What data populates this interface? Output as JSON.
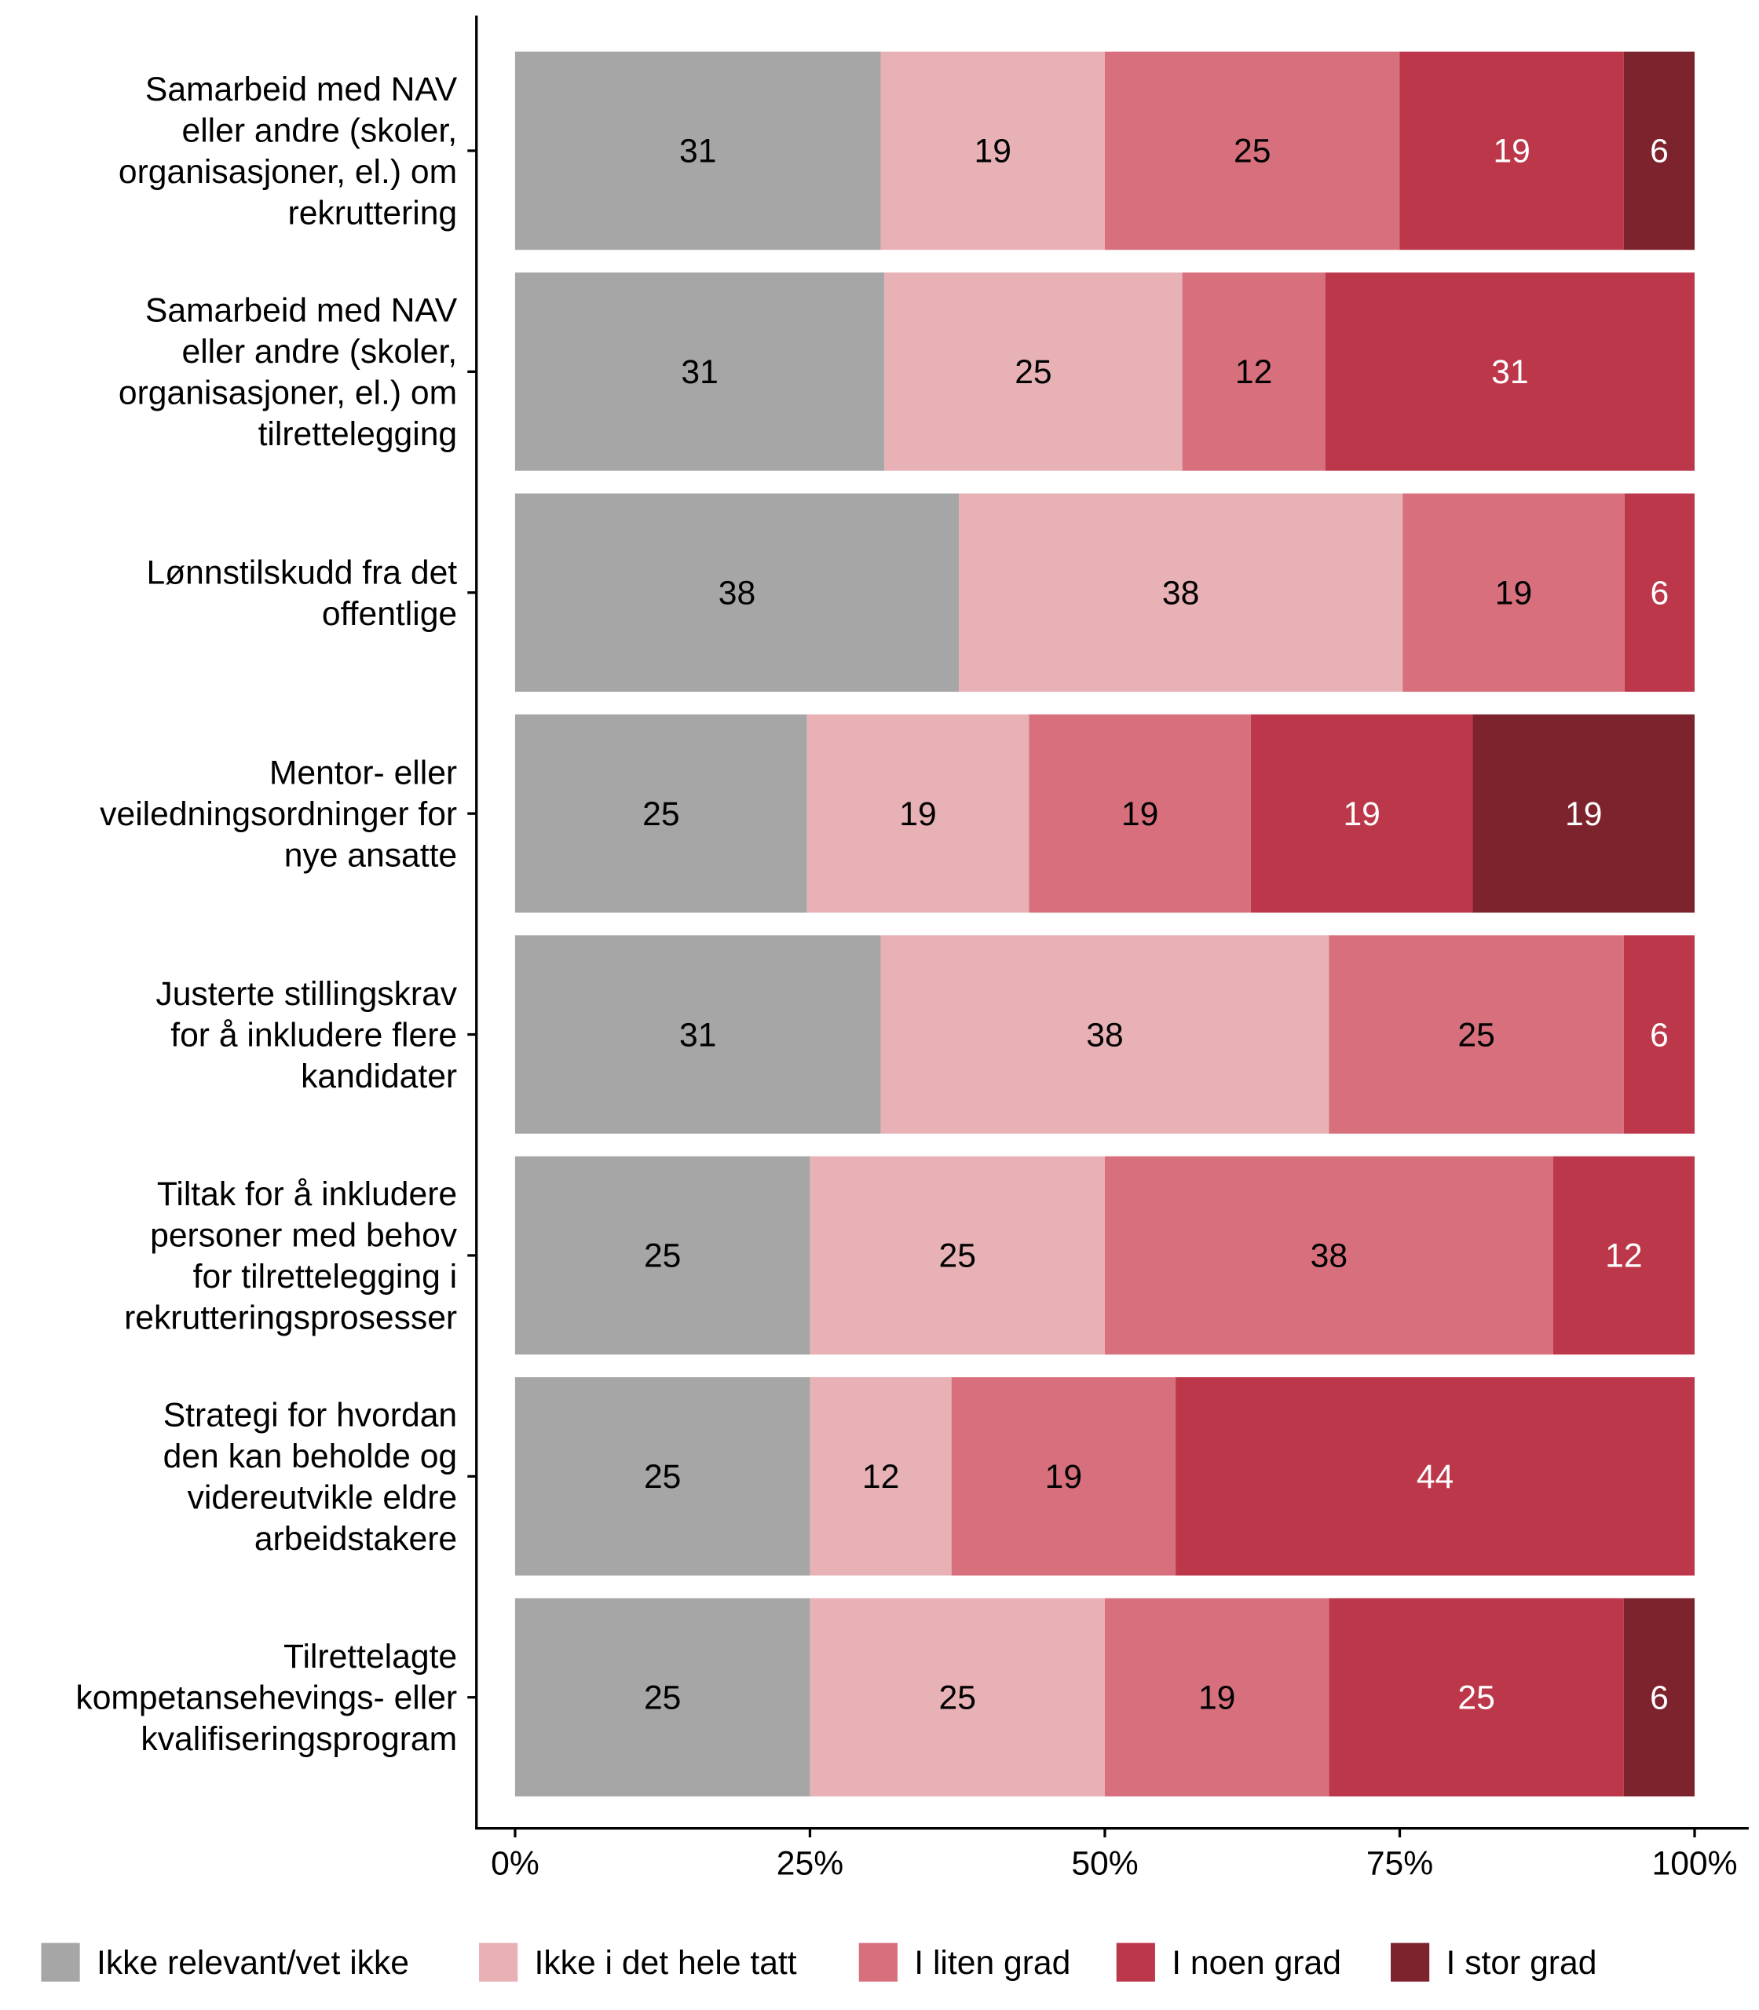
{
  "chart_data": {
    "type": "bar",
    "orientation": "horizontal",
    "stacked": true,
    "title": "",
    "xlabel": "",
    "ylabel": "",
    "xlim": [
      0,
      100
    ],
    "x_ticks": [
      "0%",
      "25%",
      "50%",
      "75%",
      "100%"
    ],
    "x_tick_values": [
      0,
      25,
      50,
      75,
      100
    ],
    "grid": false,
    "legend_position": "bottom",
    "categories": [
      [
        "Samarbeid med NAV",
        "eller andre (skoler,",
        "organisasjoner, el.) om",
        "rekruttering"
      ],
      [
        "Samarbeid med NAV",
        "eller andre (skoler,",
        "organisasjoner, el.) om",
        "tilrettelegging"
      ],
      [
        "Lønnstilskudd fra det",
        "offentlige"
      ],
      [
        "Mentor- eller",
        "veiledningsordninger for",
        "nye ansatte"
      ],
      [
        "Justerte stillingskrav",
        "for å inkludere flere",
        "kandidater"
      ],
      [
        "Tiltak for å inkludere",
        "personer med behov",
        "for tilrettelegging i",
        "rekrutteringsprosesser"
      ],
      [
        "Strategi for hvordan",
        "den kan beholde og",
        "videreutvikle eldre",
        "arbeidstakere"
      ],
      [
        "Tilrettelagte",
        "kompetansehevings- eller",
        "kvalifiseringsprogram"
      ]
    ],
    "series": [
      {
        "name": "Ikke relevant/vet ikke",
        "color": "#a6a6a6",
        "label_color": "#000000",
        "values": [
          31,
          31,
          38,
          25,
          31,
          25,
          25,
          25
        ]
      },
      {
        "name": "Ikke i det hele tatt",
        "color": "#e8b1b6",
        "label_color": "#000000",
        "values": [
          19,
          25,
          38,
          19,
          38,
          25,
          12,
          25
        ]
      },
      {
        "name": "I liten grad",
        "color": "#d7707c",
        "label_color": "#000000",
        "values": [
          25,
          12,
          19,
          19,
          25,
          38,
          19,
          19
        ]
      },
      {
        "name": "I noen grad",
        "color": "#bd374a",
        "label_color": "#ffffff",
        "values": [
          19,
          31,
          6,
          19,
          6,
          12,
          44,
          25
        ]
      },
      {
        "name": "I stor grad",
        "color": "#7d232e",
        "label_color": "#ffffff",
        "values": [
          6,
          0,
          0,
          19,
          0,
          0,
          0,
          6
        ]
      }
    ]
  }
}
